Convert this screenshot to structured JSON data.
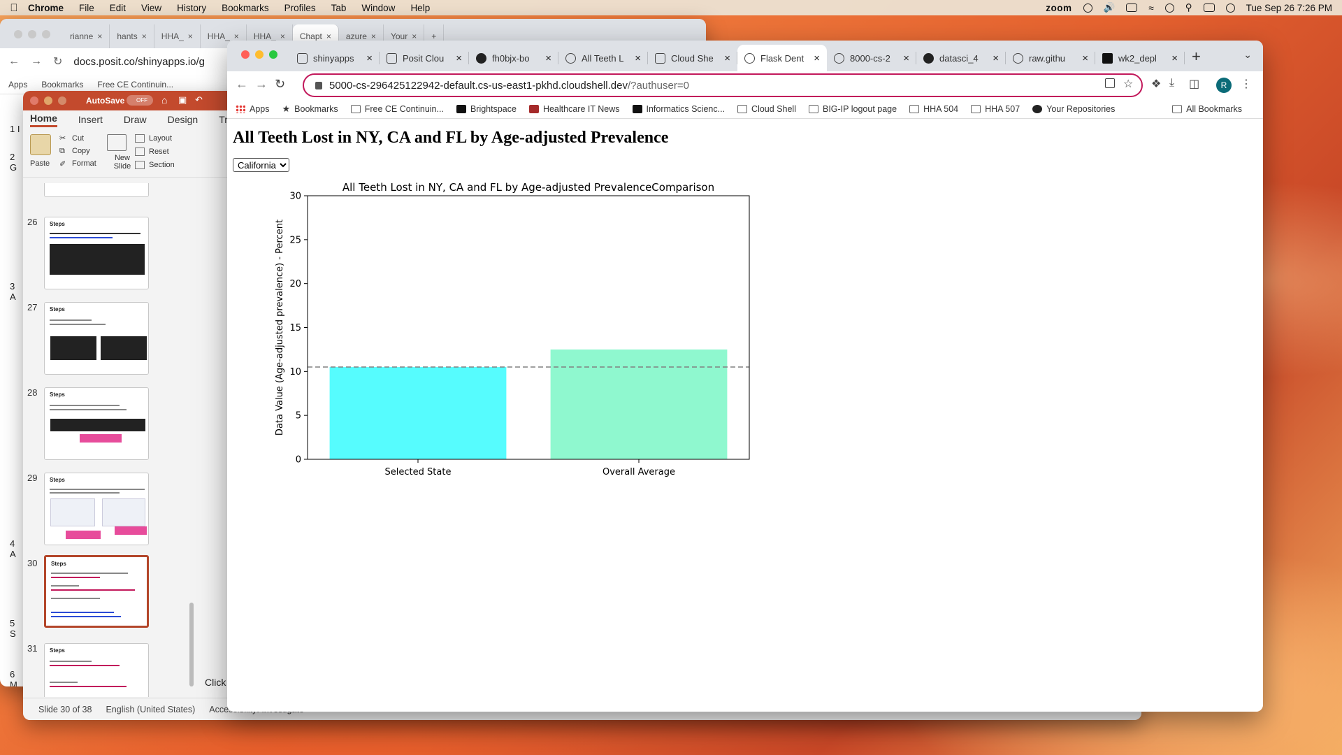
{
  "menubar": {
    "app": "Chrome",
    "items": [
      "File",
      "Edit",
      "View",
      "History",
      "Bookmarks",
      "Profiles",
      "Tab",
      "Window",
      "Help"
    ],
    "zoom": "zoom",
    "datetime": "Tue Sep 26  7:26 PM"
  },
  "bg_chrome": {
    "tabs": [
      "rianne",
      "hants",
      "HHA_",
      "HHA_",
      "HHA_",
      "Chapt",
      "azure",
      "Your"
    ],
    "url": "docs.posit.co/shinyapps.io/g",
    "bookmarks": [
      "Apps",
      "Bookmarks",
      "Free CE Continuin..."
    ]
  },
  "slide_numbers": [
    "1",
    "2",
    "3",
    "4",
    "5",
    "6"
  ],
  "slide_number_suffix": [
    "I",
    "G",
    "A",
    "A",
    "S",
    "M"
  ],
  "ppt": {
    "autosave": "AutoSave",
    "autosave_state": "OFF",
    "ribbon_tabs": [
      "Home",
      "Insert",
      "Draw",
      "Design",
      "Trans"
    ],
    "ribbon": {
      "paste": "Paste",
      "cut": "Cut",
      "copy": "Copy",
      "format": "Format",
      "new_slide": "New Slide",
      "layout": "Layout",
      "reset": "Reset",
      "section": "Section"
    },
    "thumbs": [
      {
        "num": "26",
        "title": "Steps"
      },
      {
        "num": "27",
        "title": "Steps"
      },
      {
        "num": "28",
        "title": "Steps"
      },
      {
        "num": "29",
        "title": "Steps"
      },
      {
        "num": "30",
        "title": "Steps"
      },
      {
        "num": "31",
        "title": "Steps"
      }
    ],
    "status": {
      "slide": "Slide 30 of 38",
      "language": "English (United States)",
      "accessibility": "Accessibility: Investigate"
    },
    "click_text": "Click"
  },
  "front": {
    "tabs": [
      {
        "title": "shinyapps",
        "icon": "sq"
      },
      {
        "title": "Posit Clou",
        "icon": "sq"
      },
      {
        "title": "fh0bjx-bo",
        "icon": "gh"
      },
      {
        "title": "All Teeth L",
        "icon": "globe"
      },
      {
        "title": "Cloud She",
        "icon": "sq"
      },
      {
        "title": "Flask Dent",
        "icon": "globe",
        "active": true
      },
      {
        "title": "8000-cs-2",
        "icon": "globe"
      },
      {
        "title": "datasci_4",
        "icon": "gh"
      },
      {
        "title": "raw.githu",
        "icon": "globe"
      },
      {
        "title": "wk2_depl",
        "icon": "d2l"
      }
    ],
    "url_host": "5000-cs-296425122942-default.cs-us-east1-pkhd.cloudshell.dev",
    "url_path": "/?authuser=0",
    "profile_initial": "R",
    "bookmarks": [
      {
        "label": "Apps",
        "icon": "grid"
      },
      {
        "label": "Bookmarks",
        "icon": "star"
      },
      {
        "label": "Free CE Continuin...",
        "icon": "plain"
      },
      {
        "label": "Brightspace",
        "icon": "dark"
      },
      {
        "label": "Healthcare IT News",
        "icon": "red"
      },
      {
        "label": "Informatics Scienc...",
        "icon": "dark"
      },
      {
        "label": "Cloud Shell",
        "icon": "plain"
      },
      {
        "label": "BIG-IP logout page",
        "icon": "plain"
      },
      {
        "label": "HHA 504",
        "icon": "plain"
      },
      {
        "label": "HHA 507",
        "icon": "plain"
      },
      {
        "label": "Your Repositories",
        "icon": "gh"
      }
    ],
    "all_bookmarks": "All Bookmarks"
  },
  "page": {
    "heading": "All Teeth Lost in NY, CA and FL by Age-adjusted Prevalence",
    "select_value": "California"
  },
  "chart_data": {
    "type": "bar",
    "title": "All Teeth Lost in NY, CA and FL by Age-adjusted PrevalenceComparison",
    "xlabel": "",
    "ylabel": "Data Value (Age-adjusted prevalence) - Percent",
    "categories": [
      "Selected State",
      "Overall Average"
    ],
    "values": [
      10.5,
      12.5
    ],
    "colors": [
      "#56fcfe",
      "#8ff8cf"
    ],
    "reference_line": 10.5,
    "ylim": [
      0,
      30
    ],
    "yticks": [
      0,
      5,
      10,
      15,
      20,
      25,
      30
    ],
    "grid": false,
    "legend": "none"
  }
}
